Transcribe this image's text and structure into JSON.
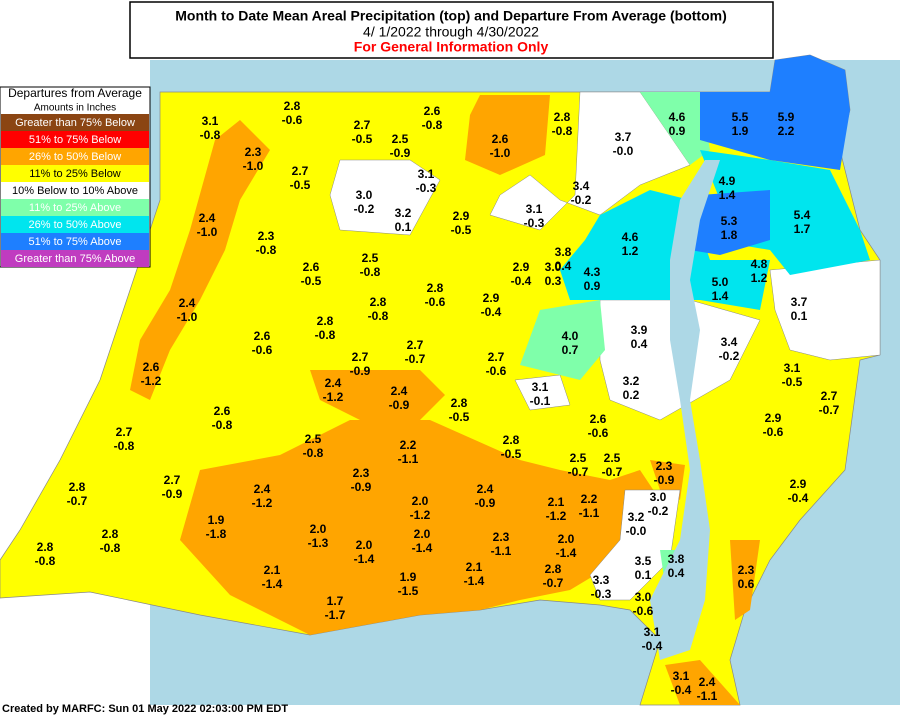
{
  "header": {
    "title": "Month to Date Mean Areal Precipitation (top) and Departure From Average (bottom)",
    "subtitle": "4/ 1/2022 through  4/30/2022",
    "note": "For General Information Only"
  },
  "legend": {
    "title": "Departures from Average",
    "subtitle": "Amounts in Inches",
    "items": [
      {
        "label": "Greater than 75% Below",
        "color": "#8b4513",
        "text_color": "#ffffff"
      },
      {
        "label": "51% to 75% Below",
        "color": "#ff0000",
        "text_color": "#ffffff"
      },
      {
        "label": "26% to 50% Below",
        "color": "#ffa500",
        "text_color": "#ffffff"
      },
      {
        "label": "11% to 25% Below",
        "color": "#ffff00",
        "text_color": "#000000"
      },
      {
        "label": "10% Below to 10% Above",
        "color": "#ffffff",
        "text_color": "#000000"
      },
      {
        "label": "11% to 25% Above",
        "color": "#7fffaa",
        "text_color": "#ffffff"
      },
      {
        "label": "26% to 50% Above",
        "color": "#00e5ee",
        "text_color": "#ffffff"
      },
      {
        "label": "51% to 75% Above",
        "color": "#1e7fff",
        "text_color": "#ffffff"
      },
      {
        "label": "Greater than 75% Above",
        "color": "#c03cc0",
        "text_color": "#ffffff"
      }
    ]
  },
  "regions": [
    [
      "3.1",
      "-0.8"
    ],
    [
      "2.8",
      "-0.6"
    ],
    [
      "2.6",
      "-0.8"
    ],
    [
      "2.7",
      "-0.5"
    ],
    [
      "2.5",
      "-0.9"
    ],
    [
      "2.3",
      "-1.0"
    ],
    [
      "2.6",
      "-1.0"
    ],
    [
      "2.8",
      "-0.8"
    ],
    [
      "3.7",
      "-0.0"
    ],
    [
      "4.6",
      "0.9"
    ],
    [
      "5.5",
      "1.9"
    ],
    [
      "5.9",
      "2.2"
    ],
    [
      "3.1",
      "-0.3"
    ],
    [
      "2.7",
      "-0.5"
    ],
    [
      "3.0",
      "-0.2"
    ],
    [
      "3.2",
      "0.1"
    ],
    [
      "3.4",
      "-0.2"
    ],
    [
      "3.1",
      "-0.3"
    ],
    [
      "2.9",
      "-0.5"
    ],
    [
      "4.9",
      "1.4"
    ],
    [
      "2.4",
      "-1.0"
    ],
    [
      "2.3",
      "-0.8"
    ],
    [
      "4.6",
      "1.2"
    ],
    [
      "5.3",
      "1.8"
    ],
    [
      "5.4",
      "1.7"
    ],
    [
      "3.8",
      "0.4"
    ],
    [
      "3.0",
      "0.3"
    ],
    [
      "2.5",
      "-0.8"
    ],
    [
      "2.6",
      "-0.5"
    ],
    [
      "2.9",
      "-0.4"
    ],
    [
      "4.3",
      "0.9"
    ],
    [
      "4.8",
      "1.2"
    ],
    [
      "2.8",
      "-0.6"
    ],
    [
      "5.0",
      "1.4"
    ],
    [
      "2.4",
      "-1.0"
    ],
    [
      "2.8",
      "-0.8"
    ],
    [
      "2.9",
      "-0.4"
    ],
    [
      "3.7",
      "0.1"
    ],
    [
      "2.6",
      "-0.6"
    ],
    [
      "2.8",
      "-0.8"
    ],
    [
      "3.9",
      "0.4"
    ],
    [
      "4.0",
      "0.7"
    ],
    [
      "2.7",
      "-0.7"
    ],
    [
      "3.4",
      "-0.2"
    ],
    [
      "2.7",
      "-0.9"
    ],
    [
      "2.7",
      "-0.6"
    ],
    [
      "2.6",
      "-1.2"
    ],
    [
      "3.1",
      "-0.5"
    ],
    [
      "2.4",
      "-1.2"
    ],
    [
      "2.4",
      "-0.9"
    ],
    [
      "3.2",
      "0.2"
    ],
    [
      "3.1",
      "-0.1"
    ],
    [
      "2.7",
      "-0.7"
    ],
    [
      "2.8",
      "-0.5"
    ],
    [
      "2.6",
      "-0.8"
    ],
    [
      "2.6",
      "-0.6"
    ],
    [
      "2.9",
      "-0.6"
    ],
    [
      "2.7",
      "-0.8"
    ],
    [
      "2.5",
      "-0.8"
    ],
    [
      "2.2",
      "-1.1"
    ],
    [
      "2.8",
      "-0.5"
    ],
    [
      "2.5",
      "-0.7"
    ],
    [
      "2.5",
      "-0.7"
    ],
    [
      "2.3",
      "-0.9"
    ],
    [
      "2.7",
      "-0.9"
    ],
    [
      "2.3",
      "-0.9"
    ],
    [
      "2.9",
      "-0.4"
    ],
    [
      "2.8",
      "-0.7"
    ],
    [
      "2.4",
      "-1.2"
    ],
    [
      "2.4",
      "-0.9"
    ],
    [
      "3.0",
      "-0.2"
    ],
    [
      "2.0",
      "-1.2"
    ],
    [
      "2.1",
      "-1.2"
    ],
    [
      "2.2",
      "-1.1"
    ],
    [
      "3.2",
      "-0.0"
    ],
    [
      "1.9",
      "-1.8"
    ],
    [
      "2.0",
      "-1.3"
    ],
    [
      "2.8",
      "-0.8"
    ],
    [
      "2.0",
      "-1.4"
    ],
    [
      "2.3",
      "-1.1"
    ],
    [
      "2.0",
      "-1.4"
    ],
    [
      "2.0",
      "-1.4"
    ],
    [
      "2.8",
      "-0.8"
    ],
    [
      "3.5",
      "0.1"
    ],
    [
      "3.8",
      "0.4"
    ],
    [
      "2.8",
      "-0.7"
    ],
    [
      "2.1",
      "-1.4"
    ],
    [
      "2.1",
      "-1.4"
    ],
    [
      "1.9",
      "-1.5"
    ],
    [
      "3.3",
      "-0.3"
    ],
    [
      "2.3",
      "0.6"
    ],
    [
      "3.0",
      "-0.6"
    ],
    [
      "1.7",
      "-1.7"
    ],
    [
      "3.1",
      "-0.4"
    ],
    [
      "3.1",
      "-0.4"
    ],
    [
      "2.4",
      "-1.1"
    ]
  ],
  "footer": "Created by MARFC: Sun 01 May 2022 02:03:00 PM EDT"
}
